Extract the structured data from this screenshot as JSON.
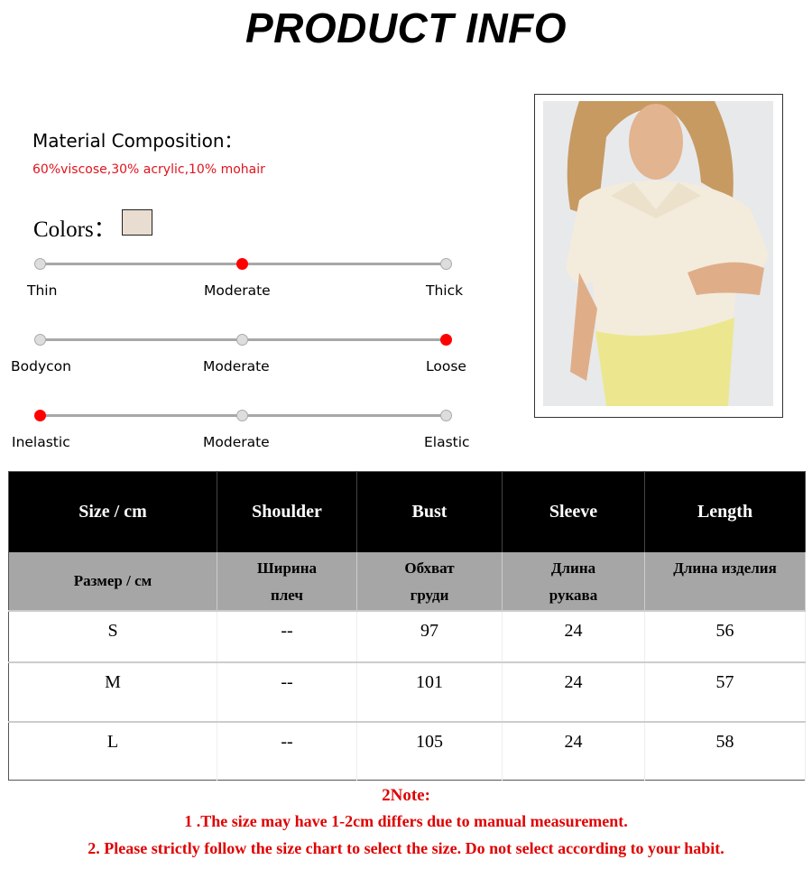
{
  "title": "PRODUCT INFO",
  "material": {
    "label": "Material Composition：",
    "value": "60%viscose,30% acrylic,10% mohair"
  },
  "colors": {
    "label": "Colors：",
    "swatches": [
      "#e8ddd0"
    ]
  },
  "scales": [
    {
      "labels": [
        "Thin",
        "Moderate",
        "Thick"
      ],
      "selected": 1
    },
    {
      "labels": [
        "Bodycon",
        "Moderate",
        "Loose"
      ],
      "selected": 2
    },
    {
      "labels": [
        "Inelastic",
        "Moderate",
        "Elastic"
      ],
      "selected": 0
    }
  ],
  "accent_color": "#ff0000",
  "photo": {
    "description_icon": "product-photo"
  },
  "table": {
    "headers_en": [
      "Size / cm",
      "Shoulder",
      "Bust",
      "Sleeve",
      "Length"
    ],
    "headers_ru": [
      [
        "Размер / см"
      ],
      [
        "Ширина",
        "плеч"
      ],
      [
        "Обхват",
        "груди"
      ],
      [
        "Длина",
        "рукава"
      ],
      [
        "Длина изделия"
      ]
    ],
    "rows": [
      [
        "S",
        "--",
        "97",
        "24",
        "56"
      ],
      [
        "M",
        "--",
        "101",
        "24",
        "57"
      ],
      [
        "L",
        "--",
        "105",
        "24",
        "58"
      ]
    ]
  },
  "notes": {
    "heading": "2Note:",
    "lines": [
      "1 .The size may have 1-2cm differs due to manual measurement.",
      "2. Please strictly follow the size chart to select the size. Do not select according to your habit."
    ]
  }
}
